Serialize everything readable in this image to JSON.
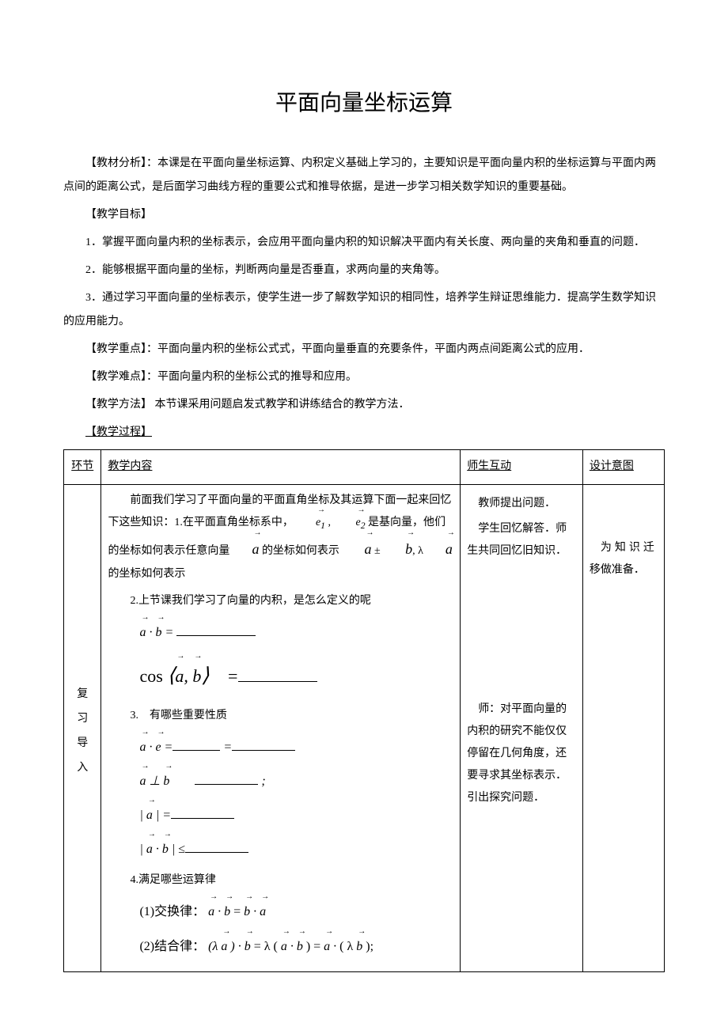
{
  "title": "平面向量坐标运算",
  "analysis_label": "【教材分析】：",
  "analysis_text": "本课是在平面向量坐标运算、内积定义基础上学习的，主要知识是平面向量内积的坐标运算与平面内两点间的距离公式，是后面学习曲线方程的重要公式和推导依据，是进一步学习相关数学知识的重要基础。",
  "goal_label": "【教学目标】",
  "goal_1": "1．掌握平面向量内积的坐标表示，会应用平面向量内积的知识解决平面内有关长度、两向量的夹角和垂直的问题．",
  "goal_2": "2．能够根据平面向量的坐标，判断两向量是否垂直，求两向量的夹角等。",
  "goal_3": "3．通过学习平面向量的坐标表示，使学生进一步了解数学知识的相同性，培养学生辩证思维能力．提高学生数学知识的应用能力。",
  "keypoint_label": "【教学重点】：",
  "keypoint_text": "平面向量内积的坐标公式式，平面向量垂直的充要条件，平面内两点间距离公式的应用．",
  "difficulty_label": "【教学难点】：",
  "difficulty_text": "平面向量内积的坐标公式的推导和应用。",
  "method_label": "【教学方法】",
  "method_text": "  本节课采用问题启发式教学和讲练结合的教学方法．",
  "process_label": "【教学过程】",
  "table": {
    "headers": {
      "col1": "环节",
      "col2": "教学内容",
      "col3": "师生互动",
      "col4": "设计意图"
    },
    "row1": {
      "segment": "复习导入",
      "content": {
        "intro": "前面我们学习了平面向量的平面直角坐标及其运算下面一起来回忆下这些知识：1.在平面直角坐标系中，",
        "e12": " 是基向量，他们的坐标如何表示任意向量",
        "a_coord": " 的坐标如何表示",
        "ab_coord": " 的坐标如何表示",
        "item2": "2.上节课我们学习了向量的内积，是怎么定义的呢",
        "item3": "3.　有哪些重要性质",
        "item4": "4.满足哪些运算律",
        "law1": "(1)交换律：",
        "law2": "(2)结合律："
      },
      "interaction": {
        "i1": "教师提出问题．",
        "i2": "学生回忆解答．师生共同回忆旧知识．",
        "i3": "师：对平面向量的内积的研究不能仅仅停留在几何角度，还要寻求其坐标表示．引出探究问题．"
      },
      "intent": "为知识迁移做准备．"
    }
  }
}
